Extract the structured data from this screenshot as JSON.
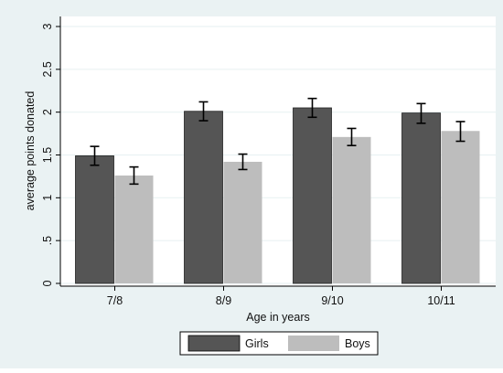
{
  "chart_data": {
    "type": "bar",
    "title": "",
    "xlabel": "Age in years",
    "ylabel": "average points donated",
    "categories": [
      "7/8",
      "8/9",
      "9/10",
      "10/11"
    ],
    "series": [
      {
        "name": "Girls",
        "color": "#555555",
        "values": [
          1.49,
          2.01,
          2.05,
          1.99
        ],
        "ci_low": [
          1.38,
          1.9,
          1.94,
          1.87
        ],
        "ci_high": [
          1.6,
          2.12,
          2.16,
          2.1
        ]
      },
      {
        "name": "Boys",
        "color": "#bdbdbd",
        "values": [
          1.26,
          1.42,
          1.71,
          1.78
        ],
        "ci_low": [
          1.16,
          1.33,
          1.61,
          1.66
        ],
        "ci_high": [
          1.36,
          1.51,
          1.81,
          1.89
        ]
      }
    ],
    "ylim": [
      0,
      3
    ],
    "yticks": [
      0,
      0.5,
      1,
      1.5,
      2,
      2.5,
      3
    ],
    "ytick_labels": [
      "0",
      ".5",
      "1",
      "1.5",
      "2",
      "2.5",
      "3"
    ],
    "grid": true,
    "error_bars": true,
    "legend": {
      "placement": "bottom",
      "entries": [
        "Girls",
        "Boys"
      ]
    },
    "colors": {
      "outer_background": "#eaf2f3",
      "plot_background": "#ffffff",
      "grid": "#eaf2f3",
      "error_bar": "#000000"
    }
  }
}
